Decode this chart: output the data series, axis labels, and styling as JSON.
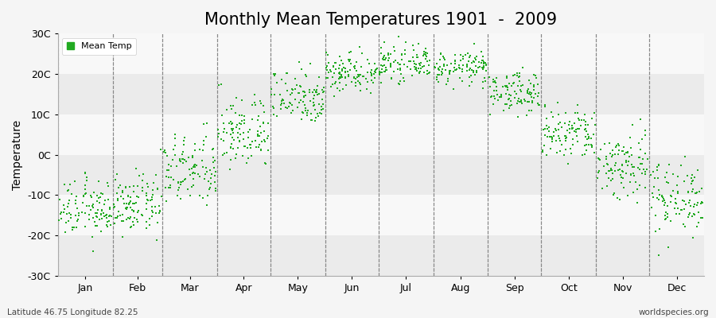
{
  "title": "Monthly Mean Temperatures 1901  -  2009",
  "ylabel": "Temperature",
  "xlabel_labels": [
    "Jan",
    "Feb",
    "Mar",
    "Apr",
    "May",
    "Jun",
    "Jul",
    "Aug",
    "Sep",
    "Oct",
    "Nov",
    "Dec"
  ],
  "subtitle_left": "Latitude 46.75 Longitude 82.25",
  "subtitle_right": "worldspecies.org",
  "ylim": [
    -30,
    30
  ],
  "yticks": [
    -30,
    -20,
    -10,
    0,
    10,
    20,
    30
  ],
  "ytick_labels": [
    "-30C",
    "-20C",
    "-10C",
    "0C",
    "10C",
    "20C",
    "30C"
  ],
  "dot_color": "#22aa22",
  "dot_size": 4,
  "background_color": "#f5f5f5",
  "plot_bg_color": "#f0f0f0",
  "title_fontsize": 15,
  "monthly_means": [
    -13.5,
    -12.5,
    -4.0,
    5.5,
    14.5,
    20.5,
    22.5,
    21.5,
    15.5,
    5.0,
    -2.5,
    -10.5
  ],
  "monthly_stds": [
    3.5,
    3.5,
    4.5,
    4.5,
    3.5,
    2.5,
    2.0,
    2.0,
    2.5,
    3.5,
    4.5,
    4.5
  ],
  "n_years": 109,
  "legend_label": "Mean Temp",
  "days_per_month": [
    31,
    28,
    31,
    30,
    31,
    30,
    31,
    31,
    30,
    31,
    30,
    31
  ]
}
